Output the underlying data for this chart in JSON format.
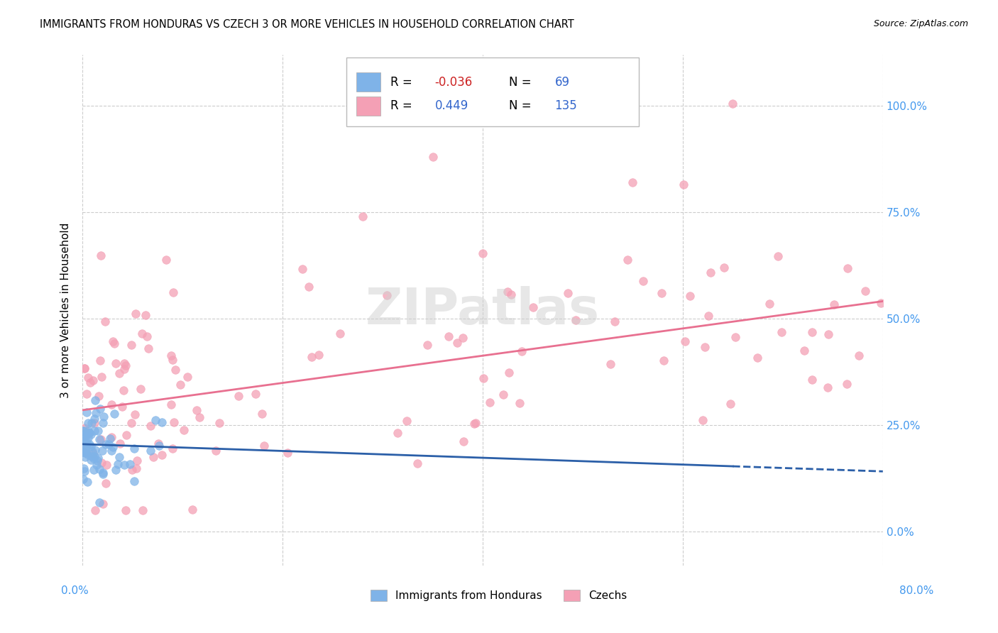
{
  "title": "IMMIGRANTS FROM HONDURAS VS CZECH 3 OR MORE VEHICLES IN HOUSEHOLD CORRELATION CHART",
  "source": "Source: ZipAtlas.com",
  "ylabel": "3 or more Vehicles in Household",
  "xlim": [
    0.0,
    80.0
  ],
  "ylim": [
    -8.0,
    112.0
  ],
  "yticks": [
    0,
    25,
    50,
    75,
    100
  ],
  "blue_R": -0.036,
  "blue_N": 69,
  "pink_R": 0.449,
  "pink_N": 135,
  "blue_color": "#7fb3e8",
  "pink_color": "#f4a0b5",
  "blue_line_color": "#2b5fa8",
  "pink_line_color": "#e87090",
  "legend_blue_label": "Immigrants from Honduras",
  "legend_pink_label": "Czechs",
  "watermark": "ZIPatlas",
  "background_color": "#ffffff",
  "grid_color": "#cccccc",
  "title_fontsize": 10.5,
  "axis_label_color": "#4499ee",
  "blue_line_intercept": 20.5,
  "blue_line_slope": -0.08,
  "blue_line_solid_end": 65,
  "pink_line_intercept": 28.5,
  "pink_line_slope": 0.32
}
